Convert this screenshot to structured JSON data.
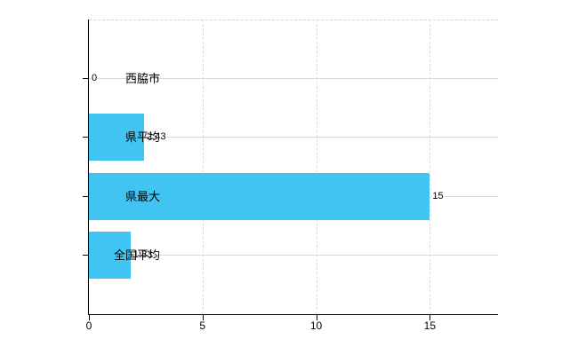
{
  "chart_data": {
    "type": "bar",
    "orientation": "horizontal",
    "title": "",
    "xlabel": "",
    "ylabel": "",
    "categories": [
      "西脇市",
      "県平均",
      "県最大",
      "全国平均"
    ],
    "values": [
      0,
      2.43,
      15,
      1.83
    ],
    "value_labels": [
      "0",
      "2.43",
      "15",
      "1.83"
    ],
    "xticks": [
      0,
      5,
      10,
      15
    ],
    "xtick_labels": [
      "0",
      "5",
      "10",
      "15"
    ],
    "xlim": [
      0,
      18
    ],
    "grid": true,
    "legend_position": "none",
    "bar_color": "#41C4F1",
    "axis_color": "#000000",
    "text_color": "#000000",
    "h_gridline_color": "#d4ded4",
    "v_gridline_color": "#dcdcdc"
  }
}
